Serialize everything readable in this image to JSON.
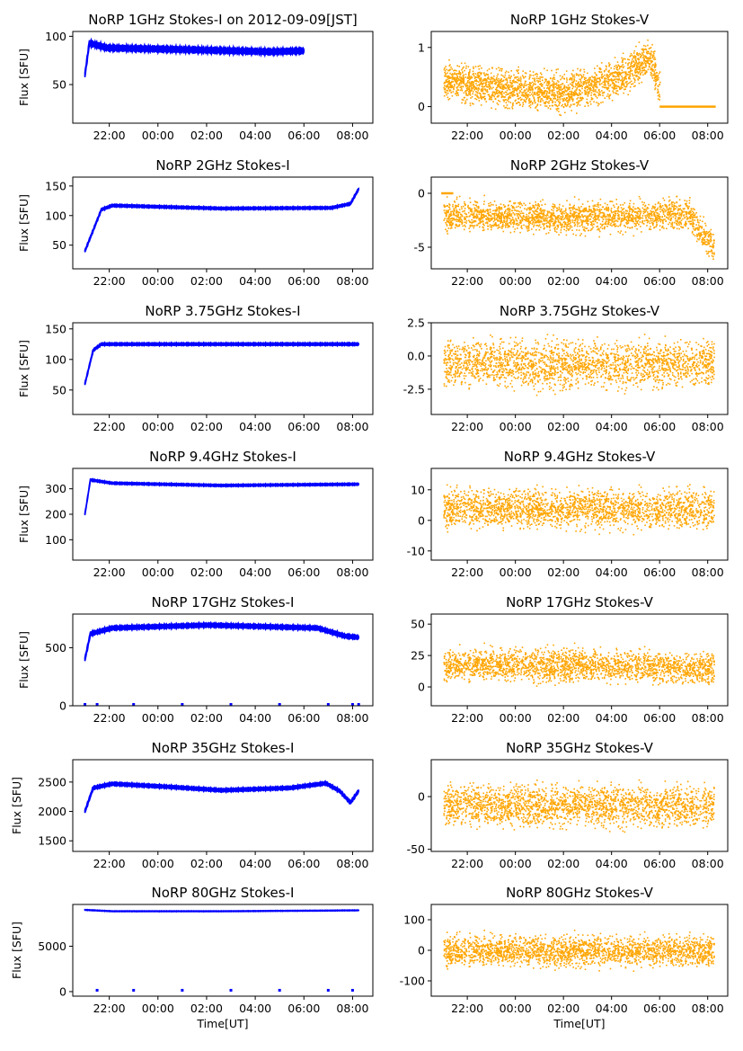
{
  "colors": {
    "stokes_i": "#0000ff",
    "stokes_v": "#ffa500"
  },
  "chart_data": [
    {
      "type": "line",
      "title": "NoRP 1GHz Stokes-I on 2012-09-09[JST]",
      "ylabel": "Flux [SFU]",
      "xlabel": "",
      "x_ticks": [
        "22:00",
        "00:00",
        "02:00",
        "04:00",
        "06:00",
        "08:00"
      ],
      "x_range": [
        "20:30",
        "08:50"
      ],
      "ylim": [
        10,
        105
      ],
      "y_ticks": [
        50,
        100
      ],
      "grid": false,
      "series": [
        {
          "color": "#0000ff",
          "shape": {
            "start": "21:00",
            "end": "06:00",
            "knots": [
              [
                0,
                60
              ],
              [
                0.02,
                93
              ],
              [
                0.1,
                88
              ],
              [
                0.5,
                86
              ],
              [
                0.85,
                84
              ],
              [
                1,
                85
              ]
            ],
            "spread": 4
          }
        }
      ]
    },
    {
      "type": "scatter",
      "title": "NoRP 1GHz Stokes-V",
      "ylabel": "",
      "xlabel": "",
      "x_ticks": [
        "22:00",
        "00:00",
        "02:00",
        "04:00",
        "06:00",
        "08:00"
      ],
      "x_range": [
        "20:30",
        "08:50"
      ],
      "ylim": [
        -0.28,
        1.27
      ],
      "y_ticks": [
        0,
        1
      ],
      "grid": false,
      "series": [
        {
          "color": "#ffa500",
          "shape": {
            "start": "21:00",
            "end": "06:00",
            "knots": [
              [
                0,
                0.45
              ],
              [
                0.3,
                0.3
              ],
              [
                0.55,
                0.25
              ],
              [
                0.7,
                0.35
              ],
              [
                0.85,
                0.6
              ],
              [
                0.95,
                0.85
              ],
              [
                1,
                0.3
              ]
            ],
            "spread": 0.45
          },
          "flat": {
            "start": "06:00",
            "end": "08:20",
            "value": 0
          }
        }
      ]
    },
    {
      "type": "line",
      "title": "NoRP 2GHz Stokes-I",
      "ylabel": "Flux [SFU]",
      "xlabel": "",
      "x_ticks": [
        "22:00",
        "00:00",
        "02:00",
        "04:00",
        "06:00",
        "08:00"
      ],
      "x_range": [
        "20:30",
        "08:50"
      ],
      "ylim": [
        10,
        165
      ],
      "y_ticks": [
        50,
        100,
        150
      ],
      "grid": false,
      "series": [
        {
          "color": "#0000ff",
          "shape": {
            "start": "21:00",
            "end": "08:15",
            "knots": [
              [
                0,
                40
              ],
              [
                0.06,
                110
              ],
              [
                0.1,
                117
              ],
              [
                0.5,
                112
              ],
              [
                0.9,
                113
              ],
              [
                0.97,
                120
              ],
              [
                1,
                145
              ]
            ],
            "spread": 3
          }
        }
      ]
    },
    {
      "type": "scatter",
      "title": "NoRP 2GHz Stokes-V",
      "ylabel": "",
      "xlabel": "",
      "x_ticks": [
        "22:00",
        "00:00",
        "02:00",
        "04:00",
        "06:00",
        "08:00"
      ],
      "x_range": [
        "20:30",
        "08:50"
      ],
      "ylim": [
        -7,
        1.5
      ],
      "y_ticks": [
        -5,
        0
      ],
      "grid": false,
      "series": [
        {
          "color": "#ffa500",
          "shape": {
            "start": "21:00",
            "end": "08:15",
            "knots": [
              [
                0,
                -2
              ],
              [
                0.5,
                -2.2
              ],
              [
                0.9,
                -1.8
              ],
              [
                1,
                -5
              ]
            ],
            "spread": 2
          },
          "flat": {
            "start": "20:55",
            "end": "21:25",
            "value": 0
          }
        }
      ]
    },
    {
      "type": "line",
      "title": "NoRP 3.75GHz Stokes-I",
      "ylabel": "Flux [SFU]",
      "xlabel": "",
      "x_ticks": [
        "22:00",
        "00:00",
        "02:00",
        "04:00",
        "06:00",
        "08:00"
      ],
      "x_range": [
        "20:30",
        "08:50"
      ],
      "ylim": [
        10,
        160
      ],
      "y_ticks": [
        50,
        100,
        150
      ],
      "grid": false,
      "series": [
        {
          "color": "#0000ff",
          "shape": {
            "start": "21:00",
            "end": "08:15",
            "knots": [
              [
                0,
                60
              ],
              [
                0.03,
                115
              ],
              [
                0.06,
                125
              ],
              [
                0.5,
                125
              ],
              [
                1,
                125
              ]
            ],
            "spread": 3
          }
        }
      ]
    },
    {
      "type": "scatter",
      "title": "NoRP 3.75GHz Stokes-V",
      "ylabel": "",
      "xlabel": "",
      "x_ticks": [
        "22:00",
        "00:00",
        "02:00",
        "04:00",
        "06:00",
        "08:00"
      ],
      "x_range": [
        "20:30",
        "08:50"
      ],
      "ylim": [
        -4.4,
        2.5
      ],
      "y_ticks": [
        -2.5,
        0.0,
        2.5
      ],
      "grid": false,
      "series": [
        {
          "color": "#ffa500",
          "shape": {
            "start": "21:00",
            "end": "08:15",
            "knots": [
              [
                0,
                -0.5
              ],
              [
                0.5,
                -0.6
              ],
              [
                1,
                -0.5
              ]
            ],
            "spread": 2.5
          }
        }
      ]
    },
    {
      "type": "line",
      "title": "NoRP 9.4GHz Stokes-I",
      "ylabel": "Flux [SFU]",
      "xlabel": "",
      "x_ticks": [
        "22:00",
        "00:00",
        "02:00",
        "04:00",
        "06:00",
        "08:00"
      ],
      "x_range": [
        "20:30",
        "08:50"
      ],
      "ylim": [
        20,
        380
      ],
      "y_ticks": [
        100,
        200,
        300
      ],
      "grid": false,
      "series": [
        {
          "color": "#0000ff",
          "shape": {
            "start": "21:00",
            "end": "08:15",
            "knots": [
              [
                0,
                200
              ],
              [
                0.02,
                335
              ],
              [
                0.1,
                322
              ],
              [
                0.5,
                313
              ],
              [
                1,
                318
              ]
            ],
            "spread": 6
          }
        }
      ]
    },
    {
      "type": "scatter",
      "title": "NoRP 9.4GHz Stokes-V",
      "ylabel": "",
      "xlabel": "",
      "x_ticks": [
        "22:00",
        "00:00",
        "02:00",
        "04:00",
        "06:00",
        "08:00"
      ],
      "x_range": [
        "20:30",
        "08:50"
      ],
      "ylim": [
        -13,
        17
      ],
      "y_ticks": [
        -10,
        0,
        10
      ],
      "grid": false,
      "series": [
        {
          "color": "#ffa500",
          "shape": {
            "start": "21:00",
            "end": "08:15",
            "knots": [
              [
                0,
                4
              ],
              [
                0.5,
                4
              ],
              [
                1,
                4
              ]
            ],
            "spread": 9
          }
        }
      ]
    },
    {
      "type": "line",
      "title": "NoRP 17GHz Stokes-I",
      "ylabel": "Flux [SFU]",
      "xlabel": "",
      "x_ticks": [
        "22:00",
        "00:00",
        "02:00",
        "04:00",
        "06:00",
        "08:00"
      ],
      "x_range": [
        "20:30",
        "08:50"
      ],
      "ylim": [
        0,
        790
      ],
      "y_ticks": [
        0,
        500
      ],
      "grid": false,
      "series": [
        {
          "color": "#0000ff",
          "shape": {
            "start": "21:00",
            "end": "08:15",
            "knots": [
              [
                0,
                400
              ],
              [
                0.02,
                620
              ],
              [
                0.1,
                670
              ],
              [
                0.45,
                695
              ],
              [
                0.85,
                670
              ],
              [
                0.95,
                600
              ],
              [
                1,
                590
              ]
            ],
            "spread": 25
          },
          "dropouts": [
            "21:00",
            "21:30",
            "23:00",
            "01:00",
            "03:00",
            "05:00",
            "07:00",
            "08:00",
            "08:15"
          ]
        }
      ]
    },
    {
      "type": "scatter",
      "title": "NoRP 17GHz Stokes-V",
      "ylabel": "",
      "xlabel": "",
      "x_ticks": [
        "22:00",
        "00:00",
        "02:00",
        "04:00",
        "06:00",
        "08:00"
      ],
      "x_range": [
        "20:30",
        "08:50"
      ],
      "ylim": [
        -15,
        58
      ],
      "y_ticks": [
        0,
        25,
        50
      ],
      "grid": false,
      "series": [
        {
          "color": "#ffa500",
          "shape": {
            "start": "21:00",
            "end": "08:15",
            "knots": [
              [
                0,
                18
              ],
              [
                0.5,
                18
              ],
              [
                1,
                15
              ]
            ],
            "spread": 18
          }
        }
      ]
    },
    {
      "type": "line",
      "title": "NoRP 35GHz Stokes-I",
      "ylabel": "Flux [SFU]",
      "xlabel": "",
      "x_ticks": [
        "22:00",
        "00:00",
        "02:00",
        "04:00",
        "06:00",
        "08:00"
      ],
      "x_range": [
        "20:30",
        "08:50"
      ],
      "ylim": [
        1320,
        2880
      ],
      "y_ticks": [
        1500,
        2000,
        2500
      ],
      "grid": false,
      "series": [
        {
          "color": "#0000ff",
          "shape": {
            "start": "21:00",
            "end": "08:15",
            "knots": [
              [
                0,
                2000
              ],
              [
                0.03,
                2400
              ],
              [
                0.1,
                2470
              ],
              [
                0.3,
                2420
              ],
              [
                0.5,
                2360
              ],
              [
                0.75,
                2400
              ],
              [
                0.88,
                2480
              ],
              [
                0.93,
                2350
              ],
              [
                0.97,
                2150
              ],
              [
                1,
                2350
              ]
            ],
            "spread": 40
          }
        }
      ]
    },
    {
      "type": "scatter",
      "title": "NoRP 35GHz Stokes-V",
      "ylabel": "",
      "xlabel": "",
      "x_ticks": [
        "22:00",
        "00:00",
        "02:00",
        "04:00",
        "06:00",
        "08:00"
      ],
      "x_range": [
        "20:30",
        "08:50"
      ],
      "ylim": [
        -52,
        35
      ],
      "y_ticks": [
        -50,
        0
      ],
      "grid": false,
      "series": [
        {
          "color": "#ffa500",
          "shape": {
            "start": "21:00",
            "end": "08:15",
            "knots": [
              [
                0,
                -8
              ],
              [
                0.5,
                -8
              ],
              [
                1,
                -8
              ]
            ],
            "spread": 28
          }
        }
      ]
    },
    {
      "type": "line",
      "title": "NoRP 80GHz Stokes-I",
      "ylabel": "Flux [SFU]",
      "xlabel": "Time[UT]",
      "x_ticks": [
        "22:00",
        "00:00",
        "02:00",
        "04:00",
        "06:00",
        "08:00"
      ],
      "x_range": [
        "20:30",
        "08:50"
      ],
      "ylim": [
        -500,
        9600
      ],
      "y_ticks": [
        0,
        5000
      ],
      "grid": false,
      "series": [
        {
          "color": "#0000ff",
          "shape": {
            "start": "21:00",
            "end": "08:15",
            "knots": [
              [
                0,
                9000
              ],
              [
                0.1,
                8850
              ],
              [
                0.5,
                8850
              ],
              [
                1,
                8950
              ]
            ],
            "spread": 60
          },
          "dropouts": [
            "21:30",
            "23:00",
            "01:00",
            "03:00",
            "05:00",
            "07:00",
            "08:00"
          ]
        }
      ]
    },
    {
      "type": "scatter",
      "title": "NoRP 80GHz Stokes-V",
      "ylabel": "",
      "xlabel": "Time[UT]",
      "x_ticks": [
        "22:00",
        "00:00",
        "02:00",
        "04:00",
        "06:00",
        "08:00"
      ],
      "x_range": [
        "20:30",
        "08:50"
      ],
      "ylim": [
        -150,
        150
      ],
      "y_ticks": [
        -100,
        0,
        100
      ],
      "grid": false,
      "series": [
        {
          "color": "#ffa500",
          "shape": {
            "start": "21:00",
            "end": "08:15",
            "knots": [
              [
                0,
                0
              ],
              [
                0.5,
                0
              ],
              [
                1,
                0
              ]
            ],
            "spread": 70
          }
        }
      ]
    }
  ]
}
